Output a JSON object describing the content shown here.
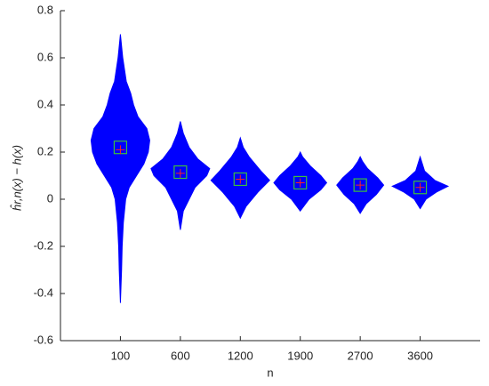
{
  "chart_data": {
    "type": "violin",
    "x_label": "n",
    "y_label": "ĥr,n(x) − h(x)",
    "categories": [
      "100",
      "600",
      "1200",
      "1900",
      "2700",
      "3600"
    ],
    "ylim": [
      -0.6,
      0.8
    ],
    "yticks": [
      -0.6,
      -0.4,
      -0.2,
      0,
      0.2,
      0.4,
      0.6,
      0.8
    ],
    "color": "#0000ff",
    "mean_color": "#3cc03c",
    "median_color": "#ff2020",
    "violins": [
      {
        "y": [
          -0.44,
          -0.3,
          -0.2,
          -0.1,
          0,
          0.05,
          0.1,
          0.15,
          0.2,
          0.25,
          0.3,
          0.35,
          0.4,
          0.45,
          0.5,
          0.6,
          0.7
        ],
        "width": [
          0,
          0.04,
          0.06,
          0.1,
          0.18,
          0.3,
          0.55,
          0.8,
          0.95,
          1.0,
          0.9,
          0.6,
          0.45,
          0.35,
          0.2,
          0.08,
          0
        ],
        "mean": 0.22,
        "median": 0.21
      },
      {
        "y": [
          -0.13,
          -0.05,
          0,
          0.05,
          0.1,
          0.13,
          0.17,
          0.22,
          0.28,
          0.33
        ],
        "width": [
          0,
          0.1,
          0.3,
          0.5,
          0.9,
          1.0,
          0.6,
          0.3,
          0.1,
          0
        ],
        "mean": 0.115,
        "median": 0.11
      },
      {
        "y": [
          -0.08,
          -0.03,
          0.03,
          0.08,
          0.12,
          0.18,
          0.22,
          0.26
        ],
        "width": [
          0,
          0.2,
          0.6,
          1.0,
          0.7,
          0.3,
          0.1,
          0
        ],
        "mean": 0.085,
        "median": 0.085
      },
      {
        "y": [
          -0.05,
          0,
          0.04,
          0.07,
          0.1,
          0.14,
          0.18,
          0.2
        ],
        "width": [
          0,
          0.3,
          0.7,
          0.9,
          0.7,
          0.35,
          0.08,
          0
        ],
        "mean": 0.07,
        "median": 0.07
      },
      {
        "y": [
          -0.06,
          -0.02,
          0.02,
          0.06,
          0.09,
          0.13,
          0.16,
          0.18
        ],
        "width": [
          0,
          0.2,
          0.55,
          0.8,
          0.6,
          0.25,
          0.08,
          0
        ],
        "mean": 0.06,
        "median": 0.06
      },
      {
        "y": [
          -0.04,
          0,
          0.03,
          0.055,
          0.08,
          0.12,
          0.16,
          0.18
        ],
        "width": [
          0,
          0.2,
          0.55,
          0.95,
          0.5,
          0.15,
          0.05,
          0
        ],
        "mean": 0.05,
        "median": 0.05
      }
    ]
  }
}
